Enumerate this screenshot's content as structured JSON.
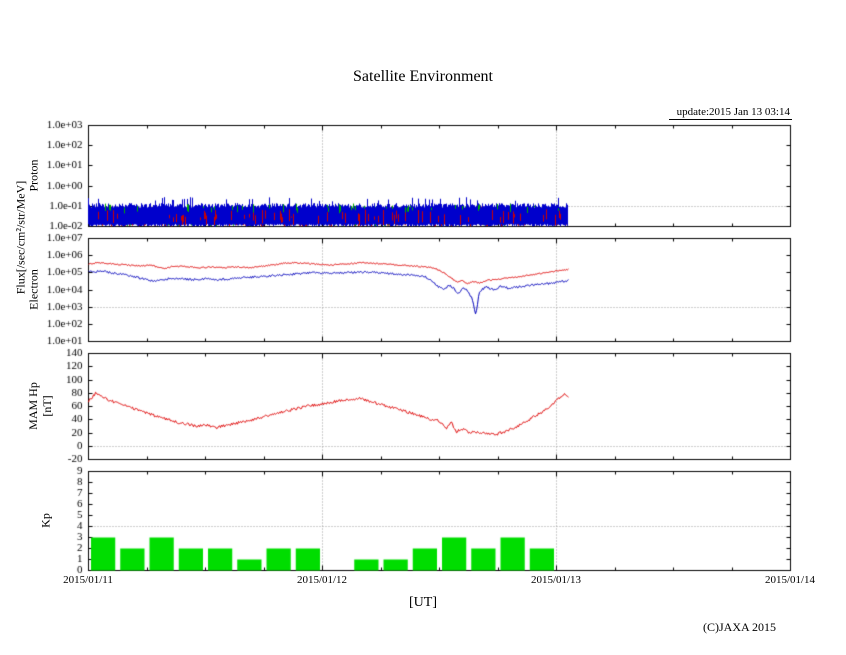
{
  "title": "Satellite Environment",
  "update_text": "update:2015 Jan 13 03:14",
  "xlabel": "[UT]",
  "copyright": "(C)JAXA 2015",
  "axis_labels": {
    "flux": "Flux[/sec/cm²/str/MeV]",
    "proton": "Proton",
    "electron": "Electron",
    "mam_hp": "MAM Hp",
    "mam_hp_unit": "[nT]",
    "kp": "Kp"
  },
  "x_axis": {
    "tick_labels": [
      "2015/01/11",
      "2015/01/12",
      "2015/01/13",
      "2015/01/14"
    ],
    "days_span": 3
  },
  "chart_data": [
    {
      "type": "scatter",
      "name": "proton_flux",
      "y_scale": "log10",
      "axis_min": -2,
      "axis_max": 3,
      "grid_value": -1,
      "y_ticks": [
        {
          "label": "1.0e+03",
          "value": 3
        },
        {
          "label": "1.0e+02",
          "value": 2
        },
        {
          "label": "1.0e+01",
          "value": 1
        },
        {
          "label": "1.0e+00",
          "value": 0
        },
        {
          "label": "1.0e-01",
          "value": -1
        },
        {
          "label": "1.0e-02",
          "value": -2
        }
      ],
      "noise_band": {
        "day_start": 0,
        "day_end": 2.05,
        "log_min": -2.0,
        "log_top_mean": -0.95,
        "colors": {
          "blue": "#0000cc",
          "red": "#cc0000",
          "green": "#00aa00"
        }
      }
    },
    {
      "type": "line",
      "name": "electron_flux",
      "y_scale": "log10",
      "axis_min": 1,
      "axis_max": 7,
      "grid_value": 3,
      "y_ticks": [
        {
          "label": "1.0e+07",
          "value": 7
        },
        {
          "label": "1.0e+06",
          "value": 6
        },
        {
          "label": "1.0e+05",
          "value": 5
        },
        {
          "label": "1.0e+04",
          "value": 4
        },
        {
          "label": "1.0e+03",
          "value": 3
        },
        {
          "label": "1.0e+02",
          "value": 2
        },
        {
          "label": "1.0e+01",
          "value": 1
        }
      ],
      "series": [
        {
          "name": "electron-upper",
          "color": "#dd0000",
          "jitter": 0.035,
          "points_log10": [
            [
              0,
              5.5
            ],
            [
              0.04,
              5.6
            ],
            [
              0.08,
              5.55
            ],
            [
              0.12,
              5.5
            ],
            [
              0.17,
              5.45
            ],
            [
              0.22,
              5.4
            ],
            [
              0.27,
              5.45
            ],
            [
              0.3,
              5.3
            ],
            [
              0.33,
              5.25
            ],
            [
              0.36,
              5.4
            ],
            [
              0.42,
              5.35
            ],
            [
              0.48,
              5.3
            ],
            [
              0.53,
              5.35
            ],
            [
              0.58,
              5.3
            ],
            [
              0.63,
              5.35
            ],
            [
              0.68,
              5.3
            ],
            [
              0.72,
              5.35
            ],
            [
              0.78,
              5.45
            ],
            [
              0.83,
              5.55
            ],
            [
              0.88,
              5.6
            ],
            [
              0.93,
              5.55
            ],
            [
              0.98,
              5.5
            ],
            [
              1.03,
              5.45
            ],
            [
              1.08,
              5.5
            ],
            [
              1.13,
              5.55
            ],
            [
              1.18,
              5.6
            ],
            [
              1.23,
              5.55
            ],
            [
              1.28,
              5.5
            ],
            [
              1.33,
              5.45
            ],
            [
              1.38,
              5.4
            ],
            [
              1.43,
              5.35
            ],
            [
              1.47,
              5.3
            ],
            [
              1.5,
              5.15
            ],
            [
              1.53,
              4.9
            ],
            [
              1.56,
              4.6
            ],
            [
              1.58,
              4.45
            ],
            [
              1.6,
              4.55
            ],
            [
              1.62,
              4.35
            ],
            [
              1.64,
              4.5
            ],
            [
              1.67,
              4.4
            ],
            [
              1.7,
              4.55
            ],
            [
              1.73,
              4.6
            ],
            [
              1.76,
              4.65
            ],
            [
              1.8,
              4.7
            ],
            [
              1.85,
              4.8
            ],
            [
              1.9,
              4.9
            ],
            [
              1.95,
              5.0
            ],
            [
              2.0,
              5.1
            ],
            [
              2.05,
              5.2
            ]
          ]
        },
        {
          "name": "electron-lower",
          "color": "#0000bb",
          "jitter": 0.06,
          "points_log10": [
            [
              0,
              5.05
            ],
            [
              0.05,
              5.1
            ],
            [
              0.1,
              5.0
            ],
            [
              0.15,
              4.9
            ],
            [
              0.2,
              4.75
            ],
            [
              0.25,
              4.6
            ],
            [
              0.28,
              4.5
            ],
            [
              0.32,
              4.6
            ],
            [
              0.36,
              4.7
            ],
            [
              0.4,
              4.65
            ],
            [
              0.45,
              4.6
            ],
            [
              0.5,
              4.65
            ],
            [
              0.55,
              4.6
            ],
            [
              0.6,
              4.65
            ],
            [
              0.65,
              4.7
            ],
            [
              0.7,
              4.75
            ],
            [
              0.75,
              4.8
            ],
            [
              0.8,
              4.85
            ],
            [
              0.85,
              4.9
            ],
            [
              0.9,
              4.95
            ],
            [
              0.95,
              5.0
            ],
            [
              1.0,
              5.0
            ],
            [
              1.05,
              5.0
            ],
            [
              1.1,
              5.0
            ],
            [
              1.15,
              5.05
            ],
            [
              1.2,
              5.05
            ],
            [
              1.25,
              5.0
            ],
            [
              1.3,
              4.95
            ],
            [
              1.35,
              4.9
            ],
            [
              1.4,
              4.85
            ],
            [
              1.44,
              4.75
            ],
            [
              1.47,
              4.5
            ],
            [
              1.5,
              4.15
            ],
            [
              1.52,
              4.0
            ],
            [
              1.54,
              4.3
            ],
            [
              1.56,
              4.1
            ],
            [
              1.58,
              3.8
            ],
            [
              1.6,
              4.15
            ],
            [
              1.62,
              3.95
            ],
            [
              1.64,
              3.5
            ],
            [
              1.655,
              2.5
            ],
            [
              1.67,
              3.9
            ],
            [
              1.7,
              4.2
            ],
            [
              1.73,
              4.0
            ],
            [
              1.76,
              4.2
            ],
            [
              1.8,
              4.1
            ],
            [
              1.85,
              4.2
            ],
            [
              1.9,
              4.3
            ],
            [
              1.95,
              4.35
            ],
            [
              2.0,
              4.45
            ],
            [
              2.05,
              4.55
            ]
          ]
        }
      ]
    },
    {
      "type": "line",
      "name": "mam_hp",
      "y_scale": "linear",
      "axis_min": -20,
      "axis_max": 140,
      "grid_value": 0,
      "y_ticks": [
        {
          "label": "140",
          "value": 140
        },
        {
          "label": "120",
          "value": 120
        },
        {
          "label": "100",
          "value": 100
        },
        {
          "label": "80",
          "value": 80
        },
        {
          "label": "60",
          "value": 60
        },
        {
          "label": "40",
          "value": 40
        },
        {
          "label": "20",
          "value": 20
        },
        {
          "label": "0",
          "value": 0
        },
        {
          "label": "-20",
          "value": -20
        }
      ],
      "series": [
        {
          "name": "hp",
          "color": "#dd0000",
          "jitter": 2,
          "points": [
            [
              0,
              68
            ],
            [
              0.03,
              80
            ],
            [
              0.06,
              74
            ],
            [
              0.1,
              68
            ],
            [
              0.15,
              62
            ],
            [
              0.2,
              56
            ],
            [
              0.25,
              50
            ],
            [
              0.3,
              44
            ],
            [
              0.34,
              40
            ],
            [
              0.38,
              36
            ],
            [
              0.42,
              34
            ],
            [
              0.46,
              30
            ],
            [
              0.5,
              33
            ],
            [
              0.54,
              28
            ],
            [
              0.58,
              31
            ],
            [
              0.62,
              34
            ],
            [
              0.66,
              37
            ],
            [
              0.7,
              40
            ],
            [
              0.76,
              46
            ],
            [
              0.82,
              51
            ],
            [
              0.88,
              56
            ],
            [
              0.94,
              61
            ],
            [
              1.0,
              64
            ],
            [
              1.06,
              68
            ],
            [
              1.12,
              71
            ],
            [
              1.16,
              72
            ],
            [
              1.2,
              68
            ],
            [
              1.25,
              63
            ],
            [
              1.3,
              58
            ],
            [
              1.35,
              53
            ],
            [
              1.4,
              48
            ],
            [
              1.45,
              42
            ],
            [
              1.5,
              38
            ],
            [
              1.53,
              26
            ],
            [
              1.55,
              36
            ],
            [
              1.57,
              22
            ],
            [
              1.6,
              26
            ],
            [
              1.63,
              20
            ],
            [
              1.66,
              22
            ],
            [
              1.7,
              19
            ],
            [
              1.74,
              18
            ],
            [
              1.78,
              22
            ],
            [
              1.82,
              28
            ],
            [
              1.86,
              35
            ],
            [
              1.9,
              44
            ],
            [
              1.94,
              52
            ],
            [
              1.98,
              62
            ],
            [
              2.01,
              72
            ],
            [
              2.03,
              79
            ],
            [
              2.05,
              76
            ]
          ]
        }
      ]
    },
    {
      "type": "bar",
      "name": "kp_index",
      "y_scale": "linear",
      "axis_min": 0,
      "axis_max": 9,
      "grid_value": 4,
      "y_ticks": [
        {
          "label": "9",
          "value": 9
        },
        {
          "label": "8",
          "value": 8
        },
        {
          "label": "7",
          "value": 7
        },
        {
          "label": "6",
          "value": 6
        },
        {
          "label": "5",
          "value": 5
        },
        {
          "label": "4",
          "value": 4
        },
        {
          "label": "3",
          "value": 3
        },
        {
          "label": "2",
          "value": 2
        },
        {
          "label": "1",
          "value": 1
        },
        {
          "label": "0",
          "value": 0
        }
      ],
      "bar_color": "#00dd00",
      "interval_hours": 3,
      "values": [
        3,
        2,
        3,
        2,
        2,
        1,
        2,
        2,
        0,
        1,
        1,
        2,
        3,
        2,
        3,
        2
      ]
    }
  ]
}
